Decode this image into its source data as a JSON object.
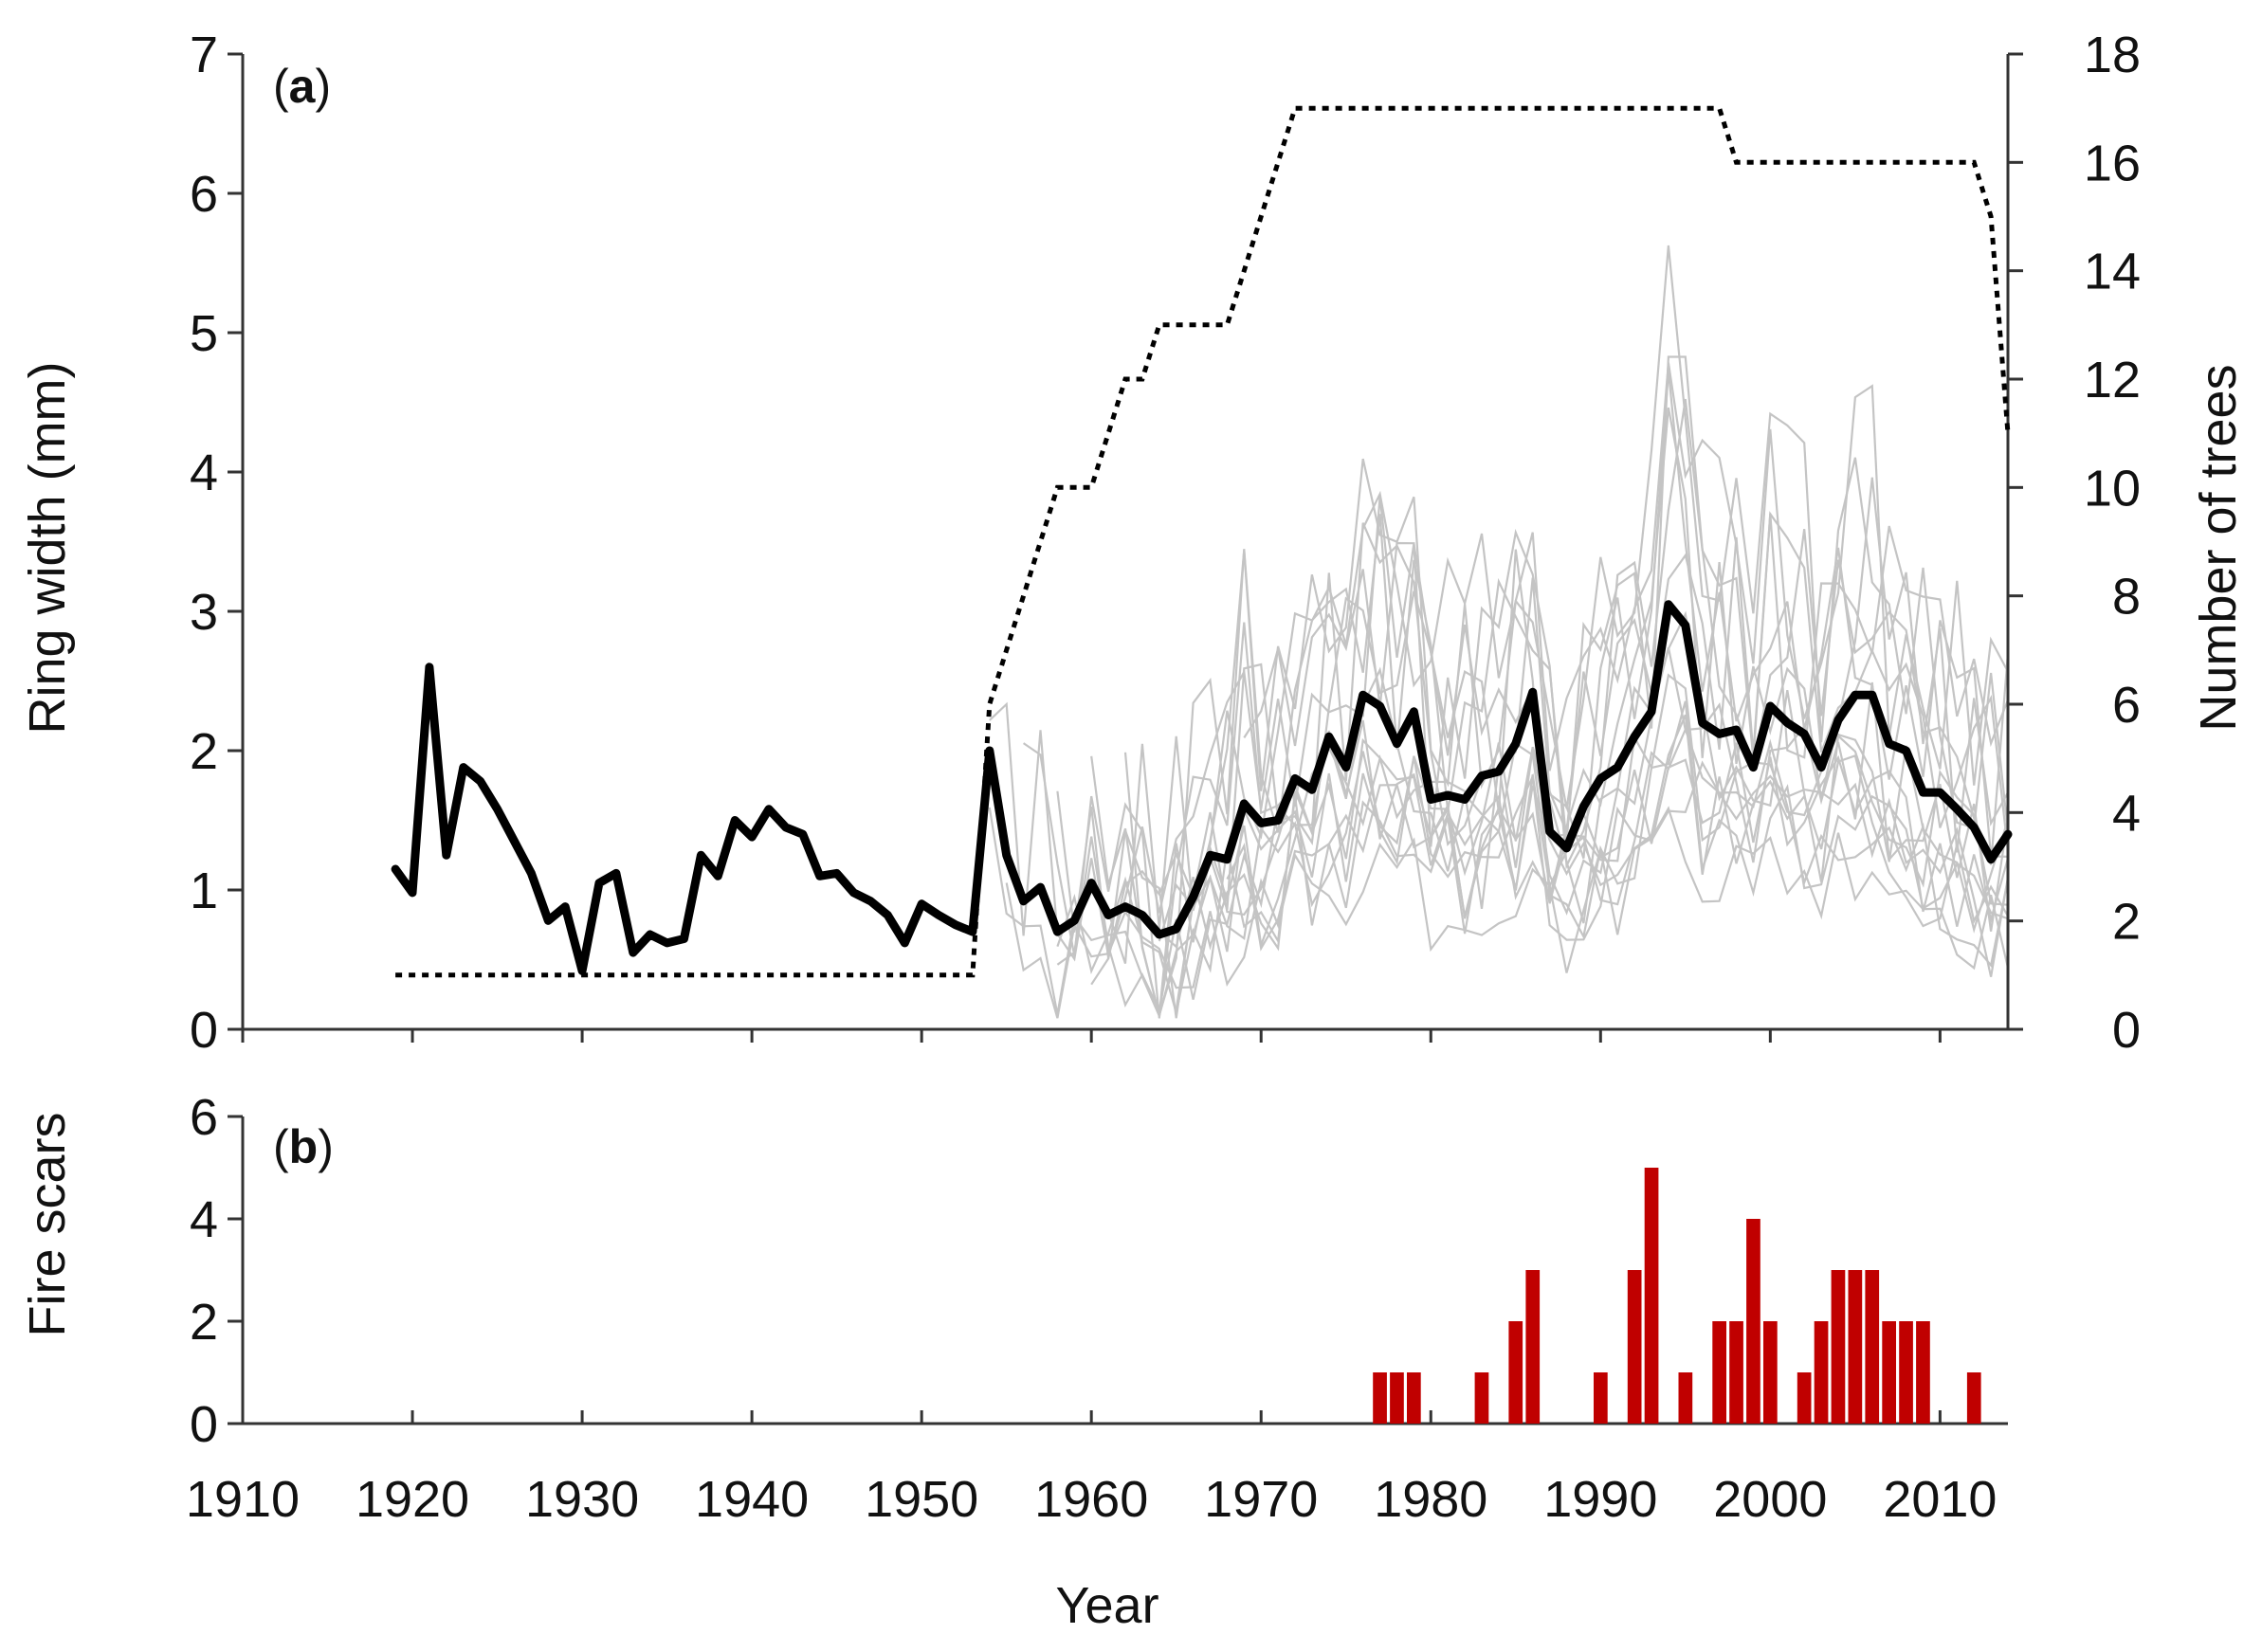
{
  "chart_data": [
    {
      "type": "line",
      "panel_label": "a",
      "ylabel": "Ring width (mm)",
      "y2label": "Number of trees",
      "xlim": [
        1910,
        2014
      ],
      "ylim": [
        0,
        7
      ],
      "y2lim": [
        0,
        18
      ],
      "yticks": [
        0,
        1,
        2,
        3,
        4,
        5,
        6,
        7
      ],
      "y2ticks": [
        0,
        2,
        4,
        6,
        8,
        10,
        12,
        14,
        16,
        18
      ],
      "series": [
        {
          "role": "mean ring width (thick black line)",
          "axis": "left",
          "color": "#000000",
          "x": [
            1919,
            1920,
            1921,
            1922,
            1923,
            1924,
            1925,
            1926,
            1927,
            1928,
            1929,
            1930,
            1931,
            1932,
            1933,
            1934,
            1935,
            1936,
            1937,
            1938,
            1939,
            1940,
            1941,
            1942,
            1943,
            1944,
            1945,
            1946,
            1947,
            1948,
            1949,
            1950,
            1951,
            1952,
            1953,
            1954,
            1955,
            1956,
            1957,
            1958,
            1959,
            1960,
            1961,
            1962,
            1963,
            1964,
            1965,
            1966,
            1967,
            1968,
            1969,
            1970,
            1971,
            1972,
            1973,
            1974,
            1975,
            1976,
            1977,
            1978,
            1979,
            1980,
            1981,
            1982,
            1983,
            1984,
            1985,
            1986,
            1987,
            1988,
            1989,
            1990,
            1991,
            1992,
            1993,
            1994,
            1995,
            1996,
            1997,
            1998,
            1999,
            2000,
            2001,
            2002,
            2003,
            2004,
            2005,
            2006,
            2007,
            2008,
            2009,
            2010,
            2011,
            2012,
            2013,
            2014
          ],
          "y": [
            1.15,
            0.98,
            2.6,
            1.25,
            1.88,
            1.78,
            1.58,
            1.35,
            1.12,
            0.78,
            0.88,
            0.42,
            1.05,
            1.12,
            0.55,
            0.68,
            0.62,
            0.65,
            1.25,
            1.1,
            1.5,
            1.38,
            1.58,
            1.45,
            1.4,
            1.1,
            1.12,
            0.98,
            0.92,
            0.82,
            0.62,
            0.9,
            0.82,
            0.75,
            0.7,
            2.0,
            1.25,
            0.92,
            1.02,
            0.7,
            0.78,
            1.05,
            0.82,
            0.88,
            0.82,
            0.68,
            0.72,
            0.95,
            1.25,
            1.22,
            1.62,
            1.48,
            1.5,
            1.8,
            1.72,
            2.1,
            1.88,
            2.4,
            2.32,
            2.05,
            2.28,
            1.65,
            1.68,
            1.65,
            1.82,
            1.85,
            2.05,
            2.42,
            1.42,
            1.3,
            1.6,
            1.8,
            1.88,
            2.1,
            2.28,
            3.05,
            2.9,
            2.2,
            2.12,
            2.15,
            1.88,
            2.32,
            2.2,
            2.12,
            1.88,
            2.22,
            2.4,
            2.4,
            2.05,
            2.0,
            1.7,
            1.7,
            1.58,
            1.45,
            1.22,
            1.4
          ]
        },
        {
          "role": "number of trees (dotted line)",
          "axis": "right",
          "color": "#000000",
          "x": [
            1919,
            1953,
            1954,
            1955,
            1956,
            1957,
            1958,
            1959,
            1960,
            1961,
            1962,
            1963,
            1964,
            1965,
            1966,
            1967,
            1968,
            1969,
            1970,
            1971,
            1972,
            1996,
            1997,
            1998,
            2011,
            2012,
            2013,
            2014
          ],
          "y": [
            1,
            1,
            6,
            7,
            8,
            9,
            10,
            10,
            10,
            11,
            12,
            12,
            13,
            13,
            13,
            13,
            13,
            14,
            15,
            16,
            17,
            17,
            17,
            16,
            16,
            16,
            15,
            11
          ]
        },
        {
          "role": "individual tree ring-width series (grey lines)",
          "axis": "left",
          "color": "#c4c4c4",
          "x_start": 1954,
          "x_end": 2014
        }
      ]
    },
    {
      "type": "bar",
      "panel_label": "b",
      "ylabel": "Fire scars",
      "xlabel": "Year",
      "xlim": [
        1910,
        2014
      ],
      "ylim": [
        0,
        6
      ],
      "yticks": [
        0,
        2,
        4,
        6
      ],
      "xticks": [
        1910,
        1920,
        1930,
        1940,
        1950,
        1960,
        1970,
        1980,
        1990,
        2000,
        2010
      ],
      "color": "#c00000",
      "x": [
        1977,
        1978,
        1979,
        1983,
        1985,
        1986,
        1990,
        1992,
        1993,
        1995,
        1997,
        1998,
        1999,
        2000,
        2002,
        2003,
        2004,
        2005,
        2006,
        2007,
        2008,
        2009,
        2012
      ],
      "values": [
        1,
        1,
        1,
        1,
        2,
        3,
        1,
        3,
        5,
        1,
        2,
        2,
        4,
        2,
        1,
        2,
        3,
        3,
        3,
        2,
        2,
        2,
        1
      ]
    }
  ]
}
